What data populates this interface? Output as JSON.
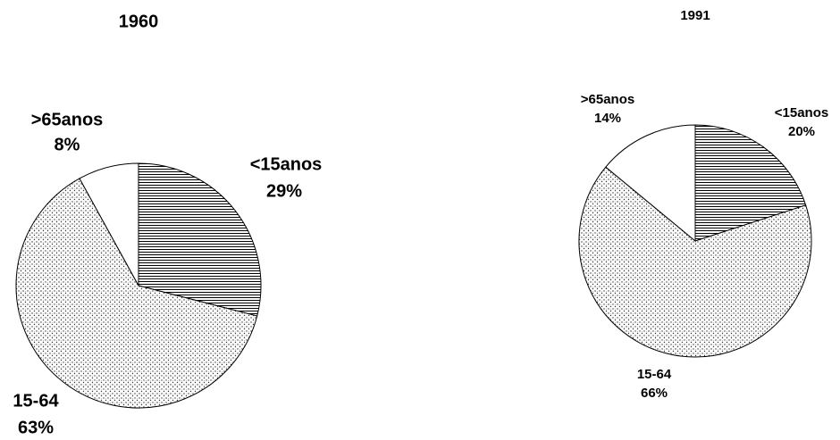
{
  "chart_data": [
    {
      "type": "pie",
      "title": "1960",
      "categories": [
        "<15anos",
        "15-64",
        ">65anos"
      ],
      "values": [
        29,
        63,
        8
      ],
      "value_labels": [
        "29%",
        "63%",
        "8%"
      ],
      "fills": [
        "hlines",
        "dots",
        "white"
      ]
    },
    {
      "type": "pie",
      "title": "1991",
      "categories": [
        "<15anos",
        "15-64",
        ">65anos"
      ],
      "values": [
        20,
        66,
        14
      ],
      "value_labels": [
        "20%",
        "66%",
        "14%"
      ],
      "fills": [
        "hlines",
        "dots",
        "white"
      ]
    }
  ]
}
